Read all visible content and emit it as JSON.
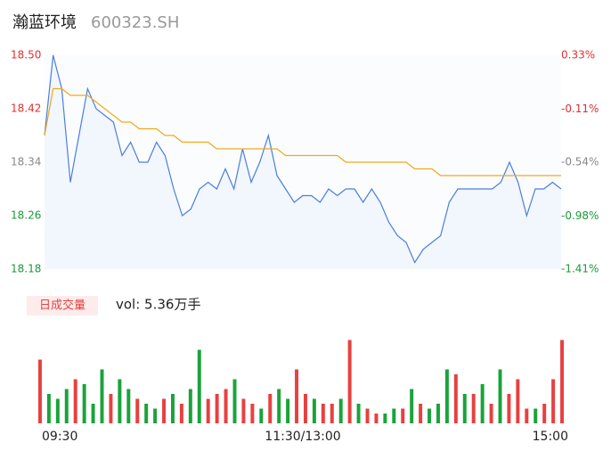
{
  "chart_data": [
    {
      "type": "line",
      "title": "瀚蓝环境",
      "subtitle": "600323.SH",
      "x": [
        0,
        4,
        8,
        12,
        16,
        20,
        24,
        28,
        32,
        36,
        40,
        44,
        48,
        52,
        56,
        60,
        64,
        68,
        72,
        76,
        80,
        84,
        88,
        92,
        96,
        100,
        104,
        108,
        112,
        116,
        120,
        124,
        128,
        132,
        136,
        140,
        144,
        148,
        152,
        156,
        160,
        164,
        168,
        172,
        176,
        180,
        184,
        188,
        192,
        196,
        200,
        204,
        208,
        212,
        216,
        220,
        224,
        228,
        232,
        236,
        240
      ],
      "series": [
        {
          "color": "#4a7fdc",
          "values": [
            18.38,
            18.5,
            18.45,
            18.31,
            18.38,
            18.45,
            18.42,
            18.41,
            18.4,
            18.35,
            18.37,
            18.34,
            18.34,
            18.37,
            18.35,
            18.3,
            18.26,
            18.27,
            18.3,
            18.31,
            18.3,
            18.33,
            18.3,
            18.36,
            18.31,
            18.34,
            18.38,
            18.32,
            18.3,
            18.28,
            18.29,
            18.29,
            18.28,
            18.3,
            18.29,
            18.3,
            18.3,
            18.28,
            18.3,
            18.28,
            18.25,
            18.23,
            18.22,
            18.19,
            18.21,
            18.22,
            18.23,
            18.28,
            18.3,
            18.3,
            18.3,
            18.3,
            18.3,
            18.31,
            18.34,
            18.31,
            18.26,
            18.3,
            18.3,
            18.31,
            18.3
          ]
        },
        {
          "color": "#f2a81d",
          "values": [
            18.38,
            18.45,
            18.45,
            18.44,
            18.44,
            18.44,
            18.43,
            18.42,
            18.41,
            18.4,
            18.4,
            18.39,
            18.39,
            18.39,
            18.38,
            18.38,
            18.37,
            18.37,
            18.37,
            18.37,
            18.36,
            18.36,
            18.36,
            18.36,
            18.36,
            18.36,
            18.36,
            18.36,
            18.35,
            18.35,
            18.35,
            18.35,
            18.35,
            18.35,
            18.35,
            18.34,
            18.34,
            18.34,
            18.34,
            18.34,
            18.34,
            18.34,
            18.34,
            18.33,
            18.33,
            18.33,
            18.32,
            18.32,
            18.32,
            18.32,
            18.32,
            18.32,
            18.32,
            18.32,
            18.32,
            18.32,
            18.32,
            18.32,
            18.32,
            18.32,
            18.32
          ]
        }
      ],
      "xlim": [
        0,
        240
      ],
      "xticks": [
        {
          "value": 0,
          "label": "09:30"
        },
        {
          "value": 120,
          "label": "11:30/13:00"
        },
        {
          "value": 240,
          "label": "15:00"
        }
      ],
      "ylim": [
        18.18,
        18.5
      ],
      "yticks": [
        {
          "value": 18.5,
          "label": "18.50"
        },
        18.42,
        18.34,
        18.26,
        18.18
      ],
      "y2lim": [
        -1.41,
        0.33
      ],
      "y2ticks": [
        {
          "value": 0.33,
          "label": "0.33%"
        },
        {
          "value": -0.11,
          "label": "-0.11%"
        },
        {
          "value": -0.54,
          "label": "-0.54%"
        },
        {
          "value": -0.98,
          "label": "-0.98%"
        },
        {
          "value": -1.41,
          "label": "-1.41%"
        }
      ],
      "tick_colors": [
        "#e03030",
        "#e03030",
        "#888888",
        "#1a9a3a",
        "#1a9a3a"
      ]
    },
    {
      "type": "bar",
      "title": "日成交量",
      "subtitle": "vol: 5.36万手",
      "values": [
        65,
        30,
        25,
        35,
        45,
        40,
        20,
        55,
        30,
        45,
        35,
        25,
        20,
        15,
        25,
        30,
        20,
        35,
        75,
        25,
        30,
        35,
        45,
        25,
        20,
        15,
        30,
        35,
        25,
        55,
        30,
        25,
        20,
        20,
        25,
        85,
        20,
        15,
        10,
        10,
        15,
        15,
        35,
        20,
        15,
        20,
        55,
        50,
        30,
        30,
        40,
        20,
        55,
        30,
        45,
        15,
        15,
        20,
        45,
        85
      ],
      "colors": [
        "#e84040",
        "#1aa33b",
        "#1aa33b",
        "#1aa33b",
        "#e84040",
        "#1aa33b",
        "#1aa33b",
        "#1aa33b",
        "#e84040",
        "#1aa33b",
        "#1aa33b",
        "#e84040",
        "#1aa33b",
        "#1aa33b",
        "#e84040",
        "#1aa33b",
        "#e84040",
        "#1aa33b",
        "#1aa33b",
        "#e84040",
        "#e84040",
        "#e84040",
        "#1aa33b",
        "#e84040",
        "#e84040",
        "#1aa33b",
        "#e84040",
        "#1aa33b",
        "#1aa33b",
        "#e84040",
        "#e84040",
        "#1aa33b",
        "#e84040",
        "#e84040",
        "#1aa33b",
        "#e84040",
        "#1aa33b",
        "#e84040",
        "#e84040",
        "#1aa33b",
        "#1aa33b",
        "#e84040",
        "#1aa33b",
        "#e84040",
        "#1aa33b",
        "#1aa33b",
        "#1aa33b",
        "#e84040",
        "#1aa33b",
        "#e84040",
        "#1aa33b",
        "#e84040",
        "#1aa33b",
        "#e84040",
        "#e84040",
        "#e84040",
        "#1aa33b",
        "#e84040",
        "#e84040",
        "#e84040"
      ],
      "ylim": [
        0,
        100
      ]
    }
  ]
}
